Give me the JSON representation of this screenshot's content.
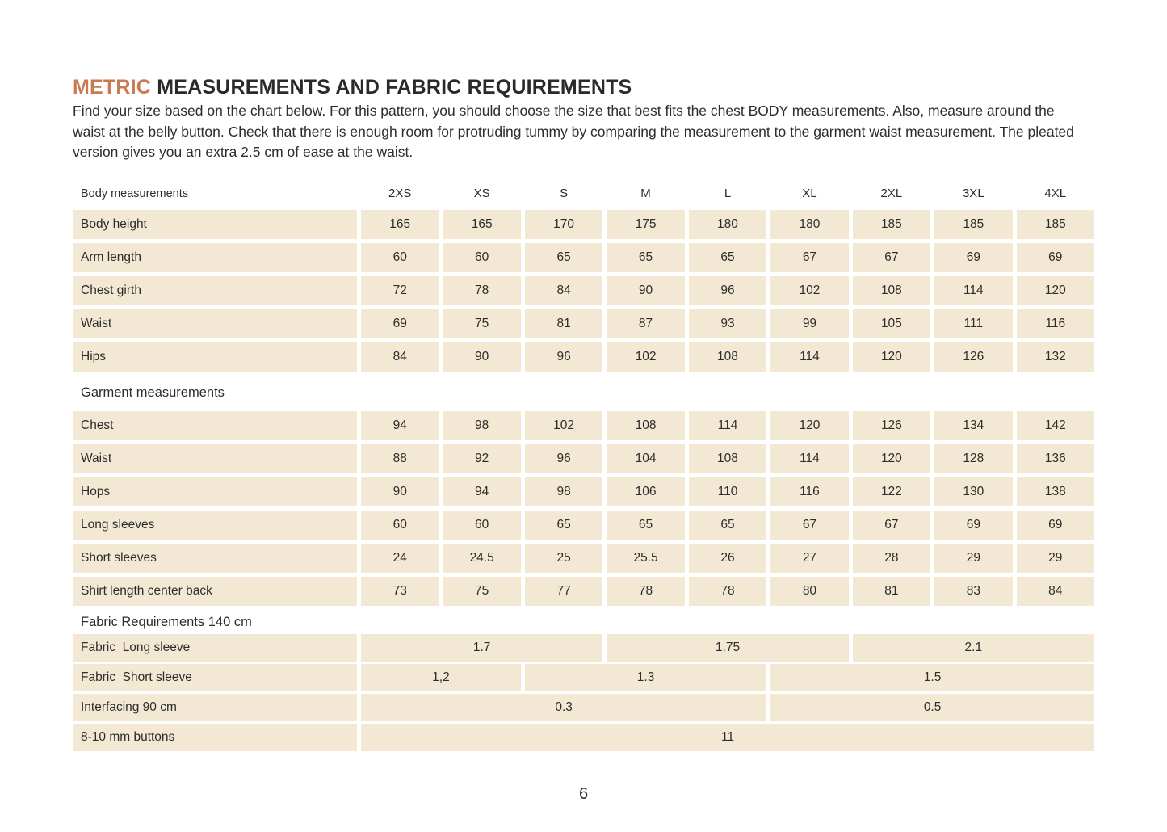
{
  "page": {
    "title_highlight": "METRIC",
    "title_rest": "MEASUREMENTS AND FABRIC REQUIREMENTS",
    "intro": "Find your size based on the chart below. For this pattern, you should choose the size that best fits the chest BODY measurements. Also, measure around the waist at the belly button. Check that there is enough room for protruding tummy by comparing the measurement to the garment waist measurement. The pleated version gives you an extra 2.5 cm of ease at the waist.",
    "page_number": "6"
  },
  "colors": {
    "accent": "#c87a52",
    "cell_background": "#f2e8d4",
    "text": "#2e2d2b"
  },
  "table": {
    "header": {
      "label": "Body measurements",
      "sizes": [
        "2XS",
        "XS",
        "S",
        "M",
        "L",
        "XL",
        "2XL",
        "3XL",
        "4XL"
      ]
    },
    "body_rows": [
      {
        "label": "Body height",
        "values": [
          "165",
          "165",
          "170",
          "175",
          "180",
          "180",
          "185",
          "185",
          "185"
        ]
      },
      {
        "label": "Arm length",
        "values": [
          "60",
          "60",
          "65",
          "65",
          "65",
          "67",
          "67",
          "69",
          "69"
        ]
      },
      {
        "label": "Chest girth",
        "values": [
          "72",
          "78",
          "84",
          "90",
          "96",
          "102",
          "108",
          "114",
          "120"
        ]
      },
      {
        "label": "Waist",
        "values": [
          "69",
          "75",
          "81",
          "87",
          "93",
          "99",
          "105",
          "111",
          "116"
        ]
      },
      {
        "label": "Hips",
        "values": [
          "84",
          "90",
          "96",
          "102",
          "108",
          "114",
          "120",
          "126",
          "132"
        ]
      }
    ],
    "garment_header": "Garment measurements",
    "garment_rows": [
      {
        "label": "Chest",
        "values": [
          "94",
          "98",
          "102",
          "108",
          "114",
          "120",
          "126",
          "134",
          "142"
        ]
      },
      {
        "label": "Waist",
        "values": [
          "88",
          "92",
          "96",
          "104",
          "108",
          "114",
          "120",
          "128",
          "136"
        ]
      },
      {
        "label": "Hops",
        "values": [
          "90",
          "94",
          "98",
          "106",
          "110",
          "116",
          "122",
          "130",
          "138"
        ]
      },
      {
        "label": "Long sleeves",
        "values": [
          "60",
          "60",
          "65",
          "65",
          "65",
          "67",
          "67",
          "69",
          "69"
        ]
      },
      {
        "label": "Short sleeves",
        "values": [
          "24",
          "24.5",
          "25",
          "25.5",
          "26",
          "27",
          "28",
          "29",
          "29"
        ]
      },
      {
        "label": "Shirt length center back",
        "values": [
          "73",
          "75",
          "77",
          "78",
          "78",
          "80",
          "81",
          "83",
          "84"
        ]
      }
    ],
    "fabric_header": "Fabric Requirements 140 cm",
    "fabric_rows": [
      {
        "label": "Fabric  Long sleeve",
        "cells": [
          {
            "value": "1.7",
            "span": 3
          },
          {
            "value": "1.75",
            "span": 3
          },
          {
            "value": "2.1",
            "span": 3
          }
        ]
      },
      {
        "label": "Fabric  Short sleeve",
        "cells": [
          {
            "value": "1,2",
            "span": 2
          },
          {
            "value": "1.3",
            "span": 3
          },
          {
            "value": "1.5",
            "span": 4
          }
        ]
      },
      {
        "label": "Interfacing 90 cm",
        "cells": [
          {
            "value": "0.3",
            "span": 5
          },
          {
            "value": "0.5",
            "span": 4
          }
        ]
      },
      {
        "label": "8-10 mm buttons",
        "cells": [
          {
            "value": "11",
            "span": 9
          }
        ]
      }
    ]
  }
}
